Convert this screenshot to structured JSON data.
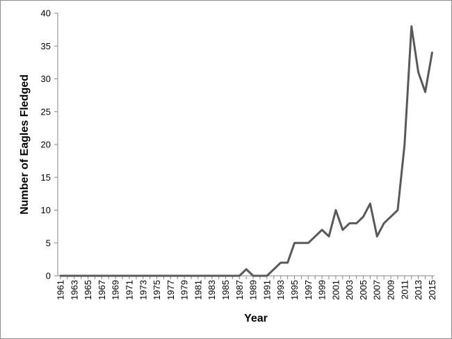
{
  "chart_data": {
    "type": "line",
    "title": "",
    "xlabel": "Year",
    "ylabel": "Number of Eagles Fledged",
    "ylim": [
      0,
      40
    ],
    "y_ticks": [
      0,
      5,
      10,
      15,
      20,
      25,
      30,
      35,
      40
    ],
    "x_tick_labels": [
      "1961",
      "1963",
      "1965",
      "1967",
      "1969",
      "1971",
      "1973",
      "1975",
      "1977",
      "1979",
      "1981",
      "1983",
      "1985",
      "1987",
      "1989",
      "1991",
      "1993",
      "1995",
      "1997",
      "1999",
      "2001",
      "2003",
      "2005",
      "2007",
      "2009",
      "2011",
      "2013",
      "2015"
    ],
    "grid": false,
    "legend": "none",
    "line_color": "#595959",
    "x": [
      1961,
      1962,
      1963,
      1964,
      1965,
      1966,
      1967,
      1968,
      1969,
      1970,
      1971,
      1972,
      1973,
      1974,
      1975,
      1976,
      1977,
      1978,
      1979,
      1980,
      1981,
      1982,
      1983,
      1984,
      1985,
      1986,
      1987,
      1988,
      1989,
      1990,
      1991,
      1992,
      1993,
      1994,
      1995,
      1996,
      1997,
      1998,
      1999,
      2000,
      2001,
      2002,
      2003,
      2004,
      2005,
      2006,
      2007,
      2008,
      2009,
      2010,
      2011,
      2012,
      2013,
      2014,
      2015
    ],
    "series": [
      {
        "values": [
          0,
          0,
          0,
          0,
          0,
          0,
          0,
          0,
          0,
          0,
          0,
          0,
          0,
          0,
          0,
          0,
          0,
          0,
          0,
          0,
          0,
          0,
          0,
          0,
          0,
          0,
          0,
          1,
          0,
          0,
          0,
          1,
          2,
          2,
          5,
          5,
          5,
          6,
          7,
          6,
          10,
          7,
          8,
          8,
          9,
          11,
          6,
          8,
          9,
          10,
          20,
          38,
          31,
          28,
          34
        ]
      }
    ]
  }
}
